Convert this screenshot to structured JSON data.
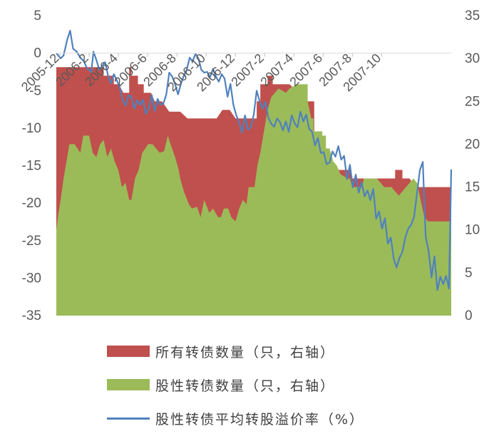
{
  "chart_data": {
    "type": "area",
    "title": "",
    "x_categories": [
      "2005-12",
      "2006-2",
      "2006-4",
      "2006-6",
      "2006-8",
      "2006-10",
      "2006-12",
      "2007-2",
      "2007-4",
      "2007-6",
      "2007-8",
      "2007-10"
    ],
    "left_axis": {
      "ticks": [
        "5",
        "0",
        "-5",
        "-10",
        "-15",
        "-20",
        "-25",
        "-30",
        "-35"
      ],
      "range": [
        -35,
        5
      ]
    },
    "right_axis": {
      "ticks": [
        "35",
        "30",
        "25",
        "20",
        "15",
        "10",
        "5",
        "0"
      ],
      "range": [
        0,
        35
      ]
    },
    "series": [
      {
        "name": "所有转债数量（只，右轴）",
        "axis": "right",
        "kind": "area",
        "color": "#C0504D",
        "points": [
          [
            0,
            29
          ],
          [
            6.5,
            29
          ],
          [
            6.5,
            28
          ],
          [
            7.9,
            28
          ],
          [
            7.9,
            27
          ],
          [
            8.6,
            27
          ],
          [
            9.2,
            26
          ],
          [
            10,
            26
          ],
          [
            10,
            29
          ],
          [
            10.3,
            29
          ],
          [
            10.3,
            28
          ],
          [
            11.2,
            28
          ],
          [
            11.2,
            27
          ],
          [
            12,
            27
          ],
          [
            12,
            26
          ],
          [
            13,
            26
          ],
          [
            13.5,
            25
          ],
          [
            14.5,
            25
          ],
          [
            15.5,
            23.8
          ],
          [
            17,
            23.8
          ],
          [
            18,
            23
          ],
          [
            22,
            23
          ],
          [
            22.8,
            24
          ],
          [
            23.8,
            24
          ],
          [
            24.6,
            23
          ],
          [
            27.5,
            23
          ],
          [
            27.5,
            25
          ],
          [
            28,
            25
          ],
          [
            28,
            27
          ],
          [
            29,
            27
          ],
          [
            29,
            28
          ],
          [
            29.7,
            28
          ],
          [
            29.7,
            27
          ],
          [
            32,
            27
          ],
          [
            34.5,
            25
          ],
          [
            35.4,
            25
          ],
          [
            35.4,
            17.5
          ],
          [
            36,
            17
          ],
          [
            40.5,
            17
          ],
          [
            40.5,
            16
          ],
          [
            46.5,
            16
          ],
          [
            46.5,
            17
          ],
          [
            47.5,
            17
          ],
          [
            47.5,
            16
          ],
          [
            48.5,
            16
          ],
          [
            49.2,
            15
          ],
          [
            54.2,
            15
          ],
          [
            54.2,
            10
          ]
        ]
      },
      {
        "name": "股性转债数量（只，右轴）",
        "axis": "right",
        "kind": "area",
        "color": "#9BBB59",
        "points": [
          [
            0,
            10
          ],
          [
            0.3,
            12
          ],
          [
            0.6,
            13.5
          ],
          [
            1,
            16
          ],
          [
            1.8,
            20
          ],
          [
            2.5,
            20
          ],
          [
            3.3,
            19
          ],
          [
            3.7,
            21
          ],
          [
            4.5,
            21
          ],
          [
            5,
            19
          ],
          [
            5.5,
            18.5
          ],
          [
            6,
            20
          ],
          [
            6.5,
            20.5
          ],
          [
            7,
            18.5
          ],
          [
            7.5,
            19.5
          ],
          [
            8,
            18
          ],
          [
            8.5,
            17
          ],
          [
            9,
            15
          ],
          [
            9.5,
            15.5
          ],
          [
            10,
            13.5
          ],
          [
            10.3,
            13.5
          ],
          [
            10.8,
            16
          ],
          [
            11.3,
            17
          ],
          [
            11.8,
            19
          ],
          [
            12.6,
            20
          ],
          [
            13.2,
            20
          ],
          [
            13.7,
            19.5
          ],
          [
            14.2,
            19
          ],
          [
            14.8,
            19.2
          ],
          [
            15.3,
            21
          ],
          [
            15.8,
            19.7
          ],
          [
            16.3,
            18.5
          ],
          [
            16.8,
            17
          ],
          [
            17,
            16
          ],
          [
            17.5,
            14.5
          ],
          [
            18.2,
            13
          ],
          [
            18.6,
            12.5
          ],
          [
            19.3,
            12.7
          ],
          [
            19.8,
            11.5
          ],
          [
            20.3,
            13.5
          ],
          [
            21,
            12
          ],
          [
            21.5,
            12.5
          ],
          [
            22.2,
            11.5
          ],
          [
            22.6,
            11.5
          ],
          [
            23,
            12.5
          ],
          [
            23.6,
            12.5
          ],
          [
            24,
            11.5
          ],
          [
            24.6,
            11
          ],
          [
            25.1,
            12.5
          ],
          [
            25.6,
            13.5
          ],
          [
            26.1,
            13
          ],
          [
            26.4,
            15
          ],
          [
            27.2,
            15
          ],
          [
            27.6,
            17.5
          ],
          [
            28,
            19
          ],
          [
            28.6,
            22
          ],
          [
            29,
            24
          ],
          [
            29.5,
            25.5
          ],
          [
            30.5,
            26.5
          ],
          [
            31.5,
            26
          ],
          [
            32,
            26.5
          ],
          [
            33,
            27
          ],
          [
            34.5,
            27
          ],
          [
            34.5,
            25
          ],
          [
            35,
            23
          ],
          [
            35.3,
            23
          ],
          [
            35.3,
            21.5
          ],
          [
            36.5,
            21.5
          ],
          [
            36.5,
            21
          ],
          [
            37,
            21
          ],
          [
            37,
            19.5
          ],
          [
            37.5,
            19.5
          ],
          [
            38,
            18
          ],
          [
            38.5,
            17.5
          ],
          [
            39,
            16.5
          ],
          [
            40,
            16
          ],
          [
            40.3,
            16
          ],
          [
            40.6,
            15
          ],
          [
            42,
            15
          ],
          [
            42.2,
            16
          ],
          [
            44,
            16
          ],
          [
            44.5,
            15.5
          ],
          [
            45,
            15
          ],
          [
            46,
            15
          ],
          [
            47,
            14
          ],
          [
            49,
            16
          ],
          [
            49.5,
            15.5
          ],
          [
            50.5,
            11.5
          ],
          [
            51,
            11
          ],
          [
            54.2,
            11
          ],
          [
            54.2,
            8
          ]
        ]
      },
      {
        "name": "股性转债平均转股溢价率（%）",
        "axis": "left",
        "kind": "line",
        "color": "#4F81BD",
        "points": [
          [
            0,
            0
          ],
          [
            0.6,
            -0.7
          ],
          [
            1,
            -0.3
          ],
          [
            1.5,
            1.8
          ],
          [
            1.9,
            3
          ],
          [
            2.3,
            0.6
          ],
          [
            2.8,
            0.2
          ],
          [
            3.3,
            -0.6
          ],
          [
            3.8,
            -1.1
          ],
          [
            4.2,
            -2
          ],
          [
            4.8,
            -2.5
          ],
          [
            5.1,
            0.2
          ],
          [
            5.5,
            -0.9
          ],
          [
            5.9,
            -2.2
          ],
          [
            6.3,
            -1.7
          ],
          [
            6.7,
            -1.2
          ],
          [
            7.1,
            -3
          ],
          [
            7.5,
            -4
          ],
          [
            7.9,
            -2.8
          ],
          [
            8.3,
            -3.6
          ],
          [
            8.7,
            -4.5
          ],
          [
            9.1,
            -6.2
          ],
          [
            9.5,
            -7
          ],
          [
            9.9,
            -5.6
          ],
          [
            10.3,
            -5.8
          ],
          [
            10.7,
            -7.4
          ],
          [
            11.1,
            -6.3
          ],
          [
            11.5,
            -6.9
          ],
          [
            11.9,
            -6.2
          ],
          [
            12.3,
            -8.1
          ],
          [
            12.7,
            -7.3
          ],
          [
            13.1,
            -5.6
          ],
          [
            13.5,
            -7.7
          ],
          [
            13.9,
            -6.1
          ],
          [
            14.3,
            -6.9
          ],
          [
            14.7,
            -6.7
          ],
          [
            15.1,
            -5.5
          ],
          [
            15.5,
            -2.6
          ],
          [
            15.9,
            -3.1
          ],
          [
            16.3,
            -4.1
          ],
          [
            16.7,
            -5.5
          ],
          [
            17.1,
            -4.1
          ],
          [
            17.5,
            -3
          ],
          [
            17.9,
            -2.2
          ],
          [
            18.3,
            -0.6
          ],
          [
            18.7,
            -1.1
          ],
          [
            19.1,
            -0.1
          ],
          [
            19.5,
            -0.7
          ],
          [
            19.9,
            -2.2
          ],
          [
            20.3,
            -2.6
          ],
          [
            20.7,
            -2.5
          ],
          [
            21.1,
            -3.2
          ],
          [
            21.5,
            -2.1
          ],
          [
            21.9,
            -3.1
          ],
          [
            22.3,
            -3.8
          ],
          [
            22.7,
            -2.8
          ],
          [
            23.1,
            -3.4
          ],
          [
            23.5,
            -5.8
          ],
          [
            23.9,
            -4.1
          ],
          [
            24.3,
            -6.9
          ],
          [
            24.7,
            -8.3
          ],
          [
            25.1,
            -9.3
          ],
          [
            25.5,
            -10.6
          ],
          [
            25.9,
            -8.3
          ],
          [
            26.3,
            -10.2
          ],
          [
            26.7,
            -9.9
          ],
          [
            27.1,
            -8.2
          ],
          [
            27.5,
            -5
          ],
          [
            27.9,
            -6.4
          ],
          [
            28.3,
            -7.4
          ],
          [
            28.7,
            -6.5
          ],
          [
            29.1,
            -8.6
          ],
          [
            29.5,
            -9.4
          ],
          [
            29.9,
            -9.8
          ],
          [
            30.3,
            -8.7
          ],
          [
            30.7,
            -9.2
          ],
          [
            31.1,
            -10.3
          ],
          [
            31.5,
            -9.1
          ],
          [
            31.9,
            -10.5
          ],
          [
            32.3,
            -8.3
          ],
          [
            32.7,
            -9.3
          ],
          [
            33.1,
            -9.9
          ],
          [
            33.5,
            -7.8
          ],
          [
            33.9,
            -9.1
          ],
          [
            34.3,
            -8.2
          ],
          [
            34.7,
            -10.1
          ],
          [
            35.1,
            -10.5
          ],
          [
            35.5,
            -12.3
          ],
          [
            35.9,
            -11.3
          ],
          [
            36.3,
            -13.3
          ],
          [
            36.7,
            -13.2
          ],
          [
            37.1,
            -14.8
          ],
          [
            37.5,
            -14.6
          ],
          [
            37.9,
            -13.1
          ],
          [
            38.3,
            -13.8
          ],
          [
            38.7,
            -12.4
          ],
          [
            39.1,
            -14.2
          ],
          [
            39.5,
            -13.7
          ],
          [
            39.9,
            -16.8
          ],
          [
            40.3,
            -14.9
          ],
          [
            40.7,
            -17.9
          ],
          [
            41.1,
            -16.2
          ],
          [
            41.5,
            -18.6
          ],
          [
            41.9,
            -17.2
          ],
          [
            42.3,
            -19.1
          ],
          [
            42.7,
            -18.3
          ],
          [
            43.1,
            -19.6
          ],
          [
            43.5,
            -18.1
          ],
          [
            43.9,
            -22.1
          ],
          [
            44.3,
            -21.1
          ],
          [
            44.7,
            -23.4
          ],
          [
            45.1,
            -22
          ],
          [
            45.5,
            -25.4
          ],
          [
            45.9,
            -24.6
          ],
          [
            46.3,
            -27.4
          ],
          [
            46.7,
            -28.6
          ],
          [
            47.1,
            -27.3
          ],
          [
            47.5,
            -26.5
          ],
          [
            47.9,
            -24.6
          ],
          [
            48.3,
            -23.4
          ],
          [
            48.7,
            -22.9
          ],
          [
            49.1,
            -21.8
          ],
          [
            49.5,
            -18.7
          ],
          [
            49.9,
            -15.6
          ],
          [
            50.3,
            -14.5
          ],
          [
            50.7,
            -24.5
          ],
          [
            51.1,
            -26.4
          ],
          [
            51.5,
            -29.9
          ],
          [
            51.9,
            -27.1
          ],
          [
            52.3,
            -31.6
          ],
          [
            52.7,
            -29.8
          ],
          [
            53.1,
            -30.8
          ],
          [
            53.5,
            -29.7
          ],
          [
            53.9,
            -31.4
          ],
          [
            54.2,
            -15.5
          ]
        ]
      }
    ]
  }
}
